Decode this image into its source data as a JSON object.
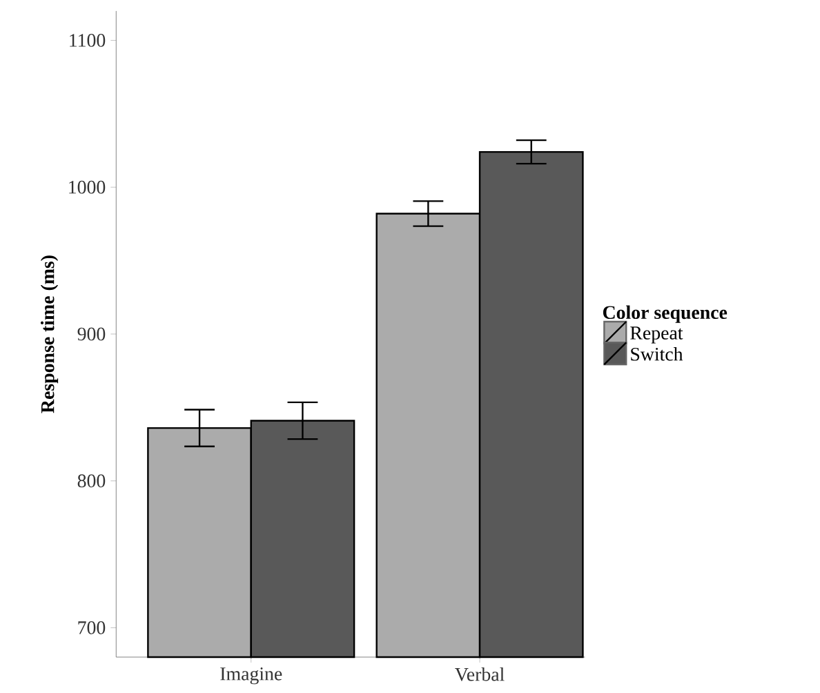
{
  "chart_data": {
    "type": "bar",
    "ylabel": "Response time (ms)",
    "legend_title": "Color sequence",
    "categories": [
      "Imagine",
      "Verbal"
    ],
    "series": [
      {
        "name": "Repeat",
        "color": "#ababab",
        "values": [
          836,
          982
        ],
        "errors": [
          12.5,
          8.5
        ]
      },
      {
        "name": "Switch",
        "color": "#595959",
        "values": [
          841,
          1024
        ],
        "errors": [
          12.5,
          8
        ]
      }
    ],
    "ylim": [
      680,
      1120
    ],
    "yticks": [
      700,
      800,
      900,
      1000,
      1100
    ],
    "grid": false,
    "legend": "right"
  }
}
